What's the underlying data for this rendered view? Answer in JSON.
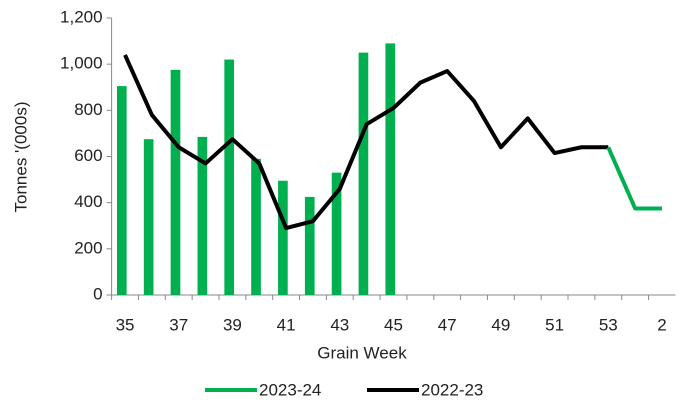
{
  "chart_data": {
    "type": "bar-line",
    "x_label": "Grain Week",
    "y_label": "Tonnes '(000s)",
    "categories": [
      "35",
      null,
      "37",
      null,
      "39",
      null,
      "41",
      null,
      "43",
      null,
      "45",
      null,
      "47",
      null,
      "49",
      null,
      "51",
      null,
      "53",
      null,
      "2"
    ],
    "series": [
      {
        "name": "2023-24",
        "color": "#00b050",
        "style": "bar",
        "values": [
          905,
          675,
          975,
          685,
          1020,
          590,
          495,
          425,
          530,
          1050,
          1090,
          null,
          null,
          null,
          null,
          null,
          null,
          null,
          null,
          null,
          null
        ]
      },
      {
        "name": "2022-23",
        "color": "#000000",
        "style": "line",
        "values": [
          1040,
          780,
          640,
          570,
          675,
          570,
          290,
          320,
          460,
          740,
          810,
          920,
          970,
          840,
          640,
          765,
          615,
          640,
          640,
          null,
          null
        ]
      },
      {
        "color": "#00b050",
        "style": "line",
        "values": [
          null,
          null,
          null,
          null,
          null,
          null,
          null,
          null,
          null,
          null,
          null,
          null,
          null,
          null,
          null,
          null,
          null,
          null,
          640,
          375,
          375
        ]
      }
    ],
    "ylim": [
      0,
      1200
    ],
    "yticks": [
      0,
      200,
      400,
      600,
      800,
      {
        "value": 1000,
        "label": "1,000"
      },
      {
        "value": 1200,
        "label": "1,200"
      }
    ],
    "legend": "bottom"
  }
}
